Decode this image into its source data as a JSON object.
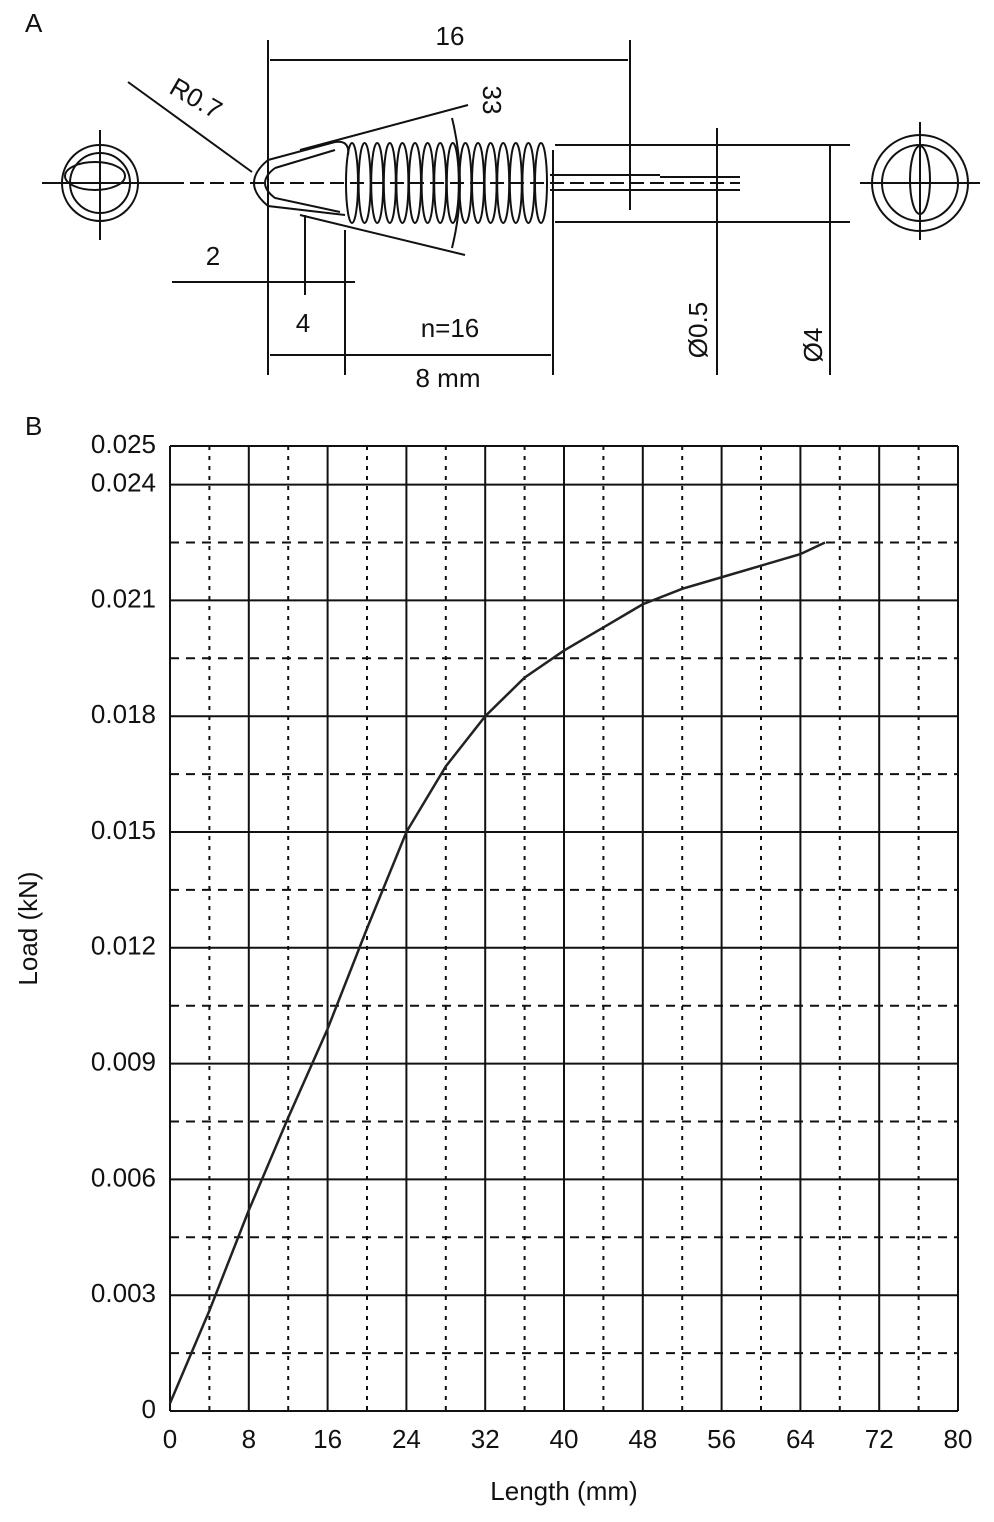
{
  "panel_a": {
    "label": "A",
    "length_16": "16",
    "radius": "R0.7",
    "angle": "33",
    "dim_2": "2",
    "dim_4": "4",
    "turns": "n=16",
    "dim_8": "8 mm",
    "wire_dia": "Ø0.5",
    "coil_dia": "Ø4"
  },
  "panel_b_label": "B",
  "chart_data": {
    "type": "line",
    "x_label": "Length (mm)",
    "y_label": "Load (kN)",
    "x": [
      0,
      4,
      8,
      12,
      16,
      20,
      24,
      28,
      32,
      36,
      40,
      44,
      48,
      52,
      56,
      60,
      64,
      66.5
    ],
    "series": [
      {
        "name": "Load",
        "color": "#222222",
        "values": [
          0.0002,
          0.0026,
          0.0052,
          0.0076,
          0.0099,
          0.0125,
          0.015,
          0.0167,
          0.018,
          0.019,
          0.0197,
          0.0203,
          0.0209,
          0.0213,
          0.0216,
          0.0219,
          0.0222,
          0.0225
        ]
      }
    ],
    "xlim": [
      0,
      80
    ],
    "xticks": [
      0,
      8,
      16,
      24,
      32,
      40,
      48,
      56,
      64,
      72,
      80
    ],
    "ylim": [
      0,
      0.025
    ],
    "yticks": [
      0,
      0.003,
      0.006,
      0.009,
      0.012,
      0.015,
      0.018,
      0.021,
      0.024,
      0.025
    ],
    "x_minor_ticks": [
      4,
      12,
      20,
      28,
      36,
      44,
      52,
      60,
      68,
      76
    ],
    "y_minor_ticks": [
      0.0015,
      0.0045,
      0.0075,
      0.0105,
      0.0135,
      0.0165,
      0.0195,
      0.0225
    ],
    "grid": true
  }
}
